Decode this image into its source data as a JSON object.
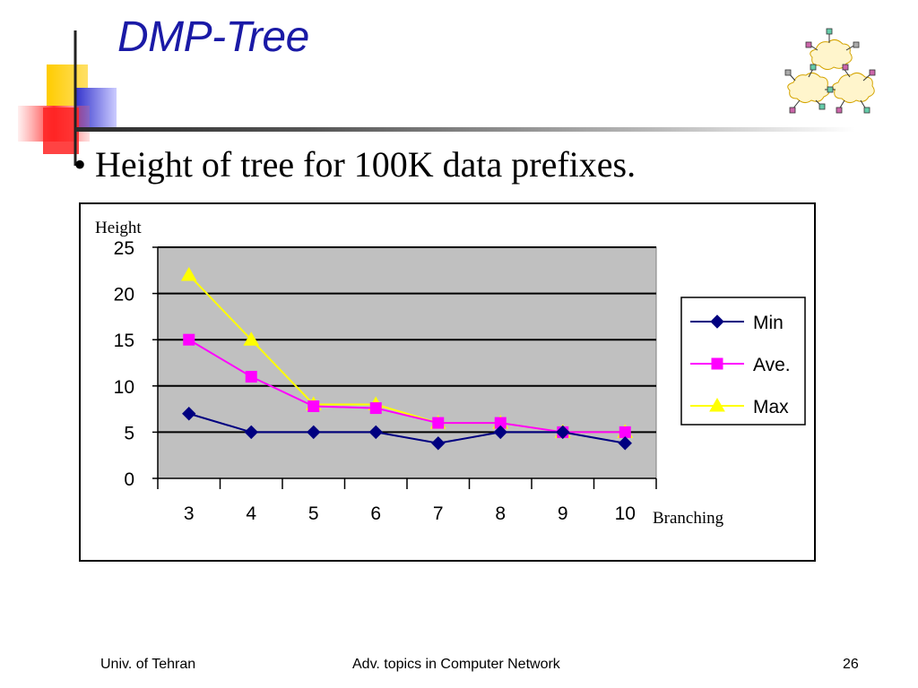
{
  "slide": {
    "title": "DMP-Tree",
    "bullet": "• Height of tree for 100K data prefixes."
  },
  "footer": {
    "left": "Univ. of Tehran",
    "center": "Adv. topics in Computer Network",
    "page": "26"
  },
  "colors": {
    "title": "#1a1aa6",
    "plot_background": "#c0c0c0",
    "min": "#000080",
    "ave": "#ff00ff",
    "max": "#ffff00"
  },
  "chart_data": {
    "type": "line",
    "title": "",
    "xlabel": "Branching",
    "ylabel": "Height",
    "categories": [
      "3",
      "4",
      "5",
      "6",
      "7",
      "8",
      "9",
      "10"
    ],
    "yticks": [
      "0",
      "5",
      "10",
      "15",
      "20",
      "25"
    ],
    "ylim": [
      0,
      25
    ],
    "grid": true,
    "legend_position": "right",
    "series": [
      {
        "name": "Min",
        "color": "#000080",
        "marker": "diamond",
        "values": [
          7,
          5,
          5,
          5,
          3.8,
          5,
          5,
          3.8
        ]
      },
      {
        "name": "Ave.",
        "color": "#ff00ff",
        "marker": "square",
        "values": [
          15,
          11,
          7.8,
          7.6,
          6,
          6,
          5,
          5
        ]
      },
      {
        "name": "Max",
        "color": "#ffff00",
        "marker": "triangle",
        "values": [
          22,
          15,
          8,
          8,
          6,
          6,
          5,
          5
        ]
      }
    ]
  }
}
